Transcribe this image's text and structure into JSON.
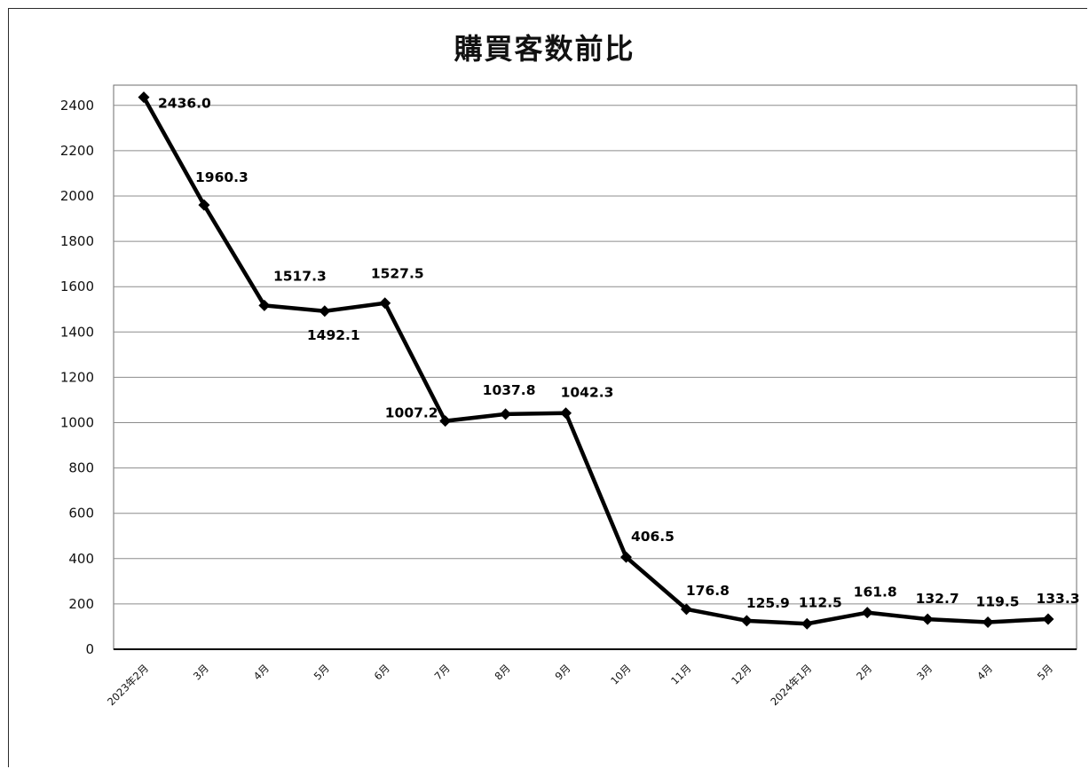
{
  "chart_data": {
    "type": "line",
    "title": "購買客数前比",
    "xlabel": "",
    "ylabel": "",
    "categories": [
      "2023年2月",
      "3月",
      "4月",
      "5月",
      "6月",
      "7月",
      "8月",
      "9月",
      "10月",
      "11月",
      "12月",
      "2024年1月",
      "2月",
      "3月",
      "4月",
      "5月"
    ],
    "series": [
      {
        "values": [
          2436.0,
          1960.3,
          1517.3,
          1492.1,
          1527.5,
          1007.2,
          1037.8,
          1042.3,
          406.5,
          176.8,
          125.9,
          112.5,
          161.8,
          132.7,
          119.5,
          133.3
        ],
        "labels": [
          "2436.0",
          "1960.3",
          "1517.3",
          "1492.1",
          "1527.5",
          "1007.2",
          "1037.8",
          "1042.3",
          "406.5",
          "176.8",
          "125.9",
          "112.5",
          "161.8",
          "132.7",
          "119.5",
          "133.3"
        ]
      }
    ],
    "yticks": [
      "0",
      "200",
      "400",
      "600",
      "800",
      "1000",
      "1200",
      "1400",
      "1600",
      "1800",
      "2000",
      "2200",
      "2400"
    ],
    "ylim": [
      0,
      2400
    ],
    "grid": true,
    "marker": "diamond",
    "line_color": "#000000"
  }
}
